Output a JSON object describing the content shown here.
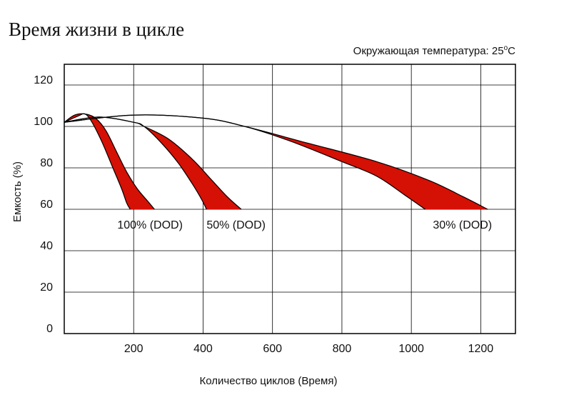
{
  "title": "Время жизни в цикле",
  "ambient_note": {
    "prefix": "Окружающая температура: 25",
    "degree": "o",
    "unit": "C"
  },
  "colors": {
    "band_fill": "#d51005",
    "line": "#000000",
    "grid": "#000000",
    "text": "#111111",
    "background": "#ffffff"
  },
  "chart_data": {
    "type": "area",
    "title": "Время жизни в цикле",
    "xlabel": "Количество циклов (Время)",
    "ylabel": "Емкость (%)",
    "xlim": [
      0,
      1300
    ],
    "ylim": [
      0,
      130
    ],
    "x_ticks": [
      200,
      400,
      600,
      800,
      1000,
      1200
    ],
    "y_ticks": [
      0,
      20,
      40,
      60,
      80,
      100,
      120
    ],
    "grid": true,
    "series": [
      {
        "name": "100% (DOD)",
        "upper": [
          [
            0,
            102
          ],
          [
            30,
            105.5
          ],
          [
            60,
            106
          ],
          [
            90,
            104
          ],
          [
            120,
            98
          ],
          [
            150,
            88
          ],
          [
            180,
            78
          ],
          [
            210,
            70
          ],
          [
            240,
            64
          ],
          [
            260,
            60
          ]
        ],
        "lower": [
          [
            0,
            102
          ],
          [
            40,
            105
          ],
          [
            60,
            106
          ],
          [
            80,
            102
          ],
          [
            110,
            92
          ],
          [
            140,
            80
          ],
          [
            165,
            70
          ],
          [
            180,
            63
          ],
          [
            190,
            60
          ]
        ]
      },
      {
        "name": "50% (DOD)",
        "upper": [
          [
            0,
            102
          ],
          [
            100,
            104.5
          ],
          [
            200,
            102
          ],
          [
            230,
            100
          ],
          [
            300,
            94
          ],
          [
            370,
            84
          ],
          [
            420,
            75
          ],
          [
            470,
            66
          ],
          [
            510,
            60
          ]
        ],
        "lower": [
          [
            0,
            102
          ],
          [
            100,
            104.5
          ],
          [
            200,
            102
          ],
          [
            230,
            100
          ],
          [
            280,
            92
          ],
          [
            330,
            82
          ],
          [
            370,
            72
          ],
          [
            395,
            65
          ],
          [
            410,
            60
          ]
        ]
      },
      {
        "name": "30% (DOD)",
        "upper": [
          [
            0,
            102
          ],
          [
            200,
            105.5
          ],
          [
            400,
            104
          ],
          [
            520,
            100
          ],
          [
            700,
            92
          ],
          [
            900,
            83
          ],
          [
            1050,
            74
          ],
          [
            1150,
            66
          ],
          [
            1220,
            60
          ]
        ],
        "lower": [
          [
            0,
            102
          ],
          [
            200,
            105.5
          ],
          [
            400,
            104
          ],
          [
            520,
            100
          ],
          [
            650,
            93
          ],
          [
            800,
            83
          ],
          [
            900,
            76
          ],
          [
            980,
            67
          ],
          [
            1040,
            60
          ]
        ]
      }
    ],
    "annotations": [
      "100% (DOD)",
      "50% (DOD)",
      "30% (DOD)"
    ]
  }
}
